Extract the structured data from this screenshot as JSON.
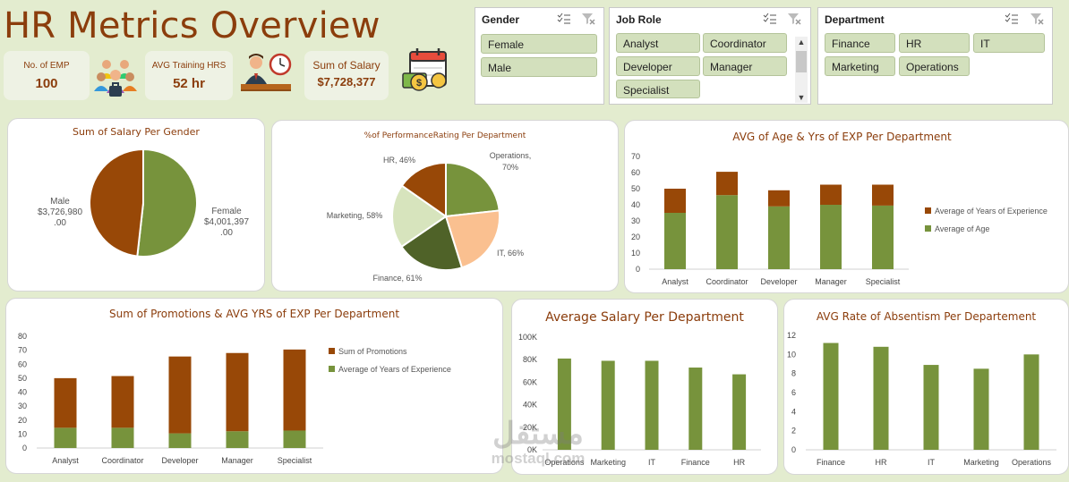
{
  "header": {
    "title": "HR Metrics Overview"
  },
  "kpis": {
    "emp_label": "No. of EMP",
    "emp_value": "100",
    "training_label": "AVG Training HRS",
    "training_value": "52 hr",
    "salary_label": "Sum of Salary",
    "salary_value": "$7,728,377"
  },
  "slicers": {
    "gender": {
      "title": "Gender",
      "items": [
        "Female",
        "Male"
      ]
    },
    "job_role": {
      "title": "Job Role",
      "items": [
        "Analyst",
        "Coordinator",
        "Developer",
        "Manager",
        "Specialist"
      ]
    },
    "department": {
      "title": "Department",
      "items": [
        "Finance",
        "HR",
        "IT",
        "Marketing",
        "Operations"
      ]
    }
  },
  "colors": {
    "brown": "#984807",
    "green": "#77933c",
    "light_green": "#d3e0bd",
    "title": "#8b3d0c"
  },
  "chart_data": [
    {
      "type": "pie",
      "title": "Sum of Salary Per Gender",
      "slices": [
        {
          "label": "Female",
          "value": 4001397,
          "display": "$4,001,397",
          "display2": ".00"
        },
        {
          "label": "Male",
          "value": 3726980,
          "display": "$3,726,980",
          "display2": ".00"
        }
      ]
    },
    {
      "type": "pie",
      "title": "%of PerformanceRating Per Department",
      "slices": [
        {
          "label": "Operations",
          "value": 70,
          "display": "Operations,",
          "display2": "70%",
          "color": "#77933c"
        },
        {
          "label": "IT",
          "value": 66,
          "display": "IT, 66%",
          "color": "#fac090"
        },
        {
          "label": "Finance",
          "value": 61,
          "display": "Finance, 61%",
          "color": "#4f6228"
        },
        {
          "label": "Marketing",
          "value": 58,
          "display": "Marketing, 58%",
          "color": "#d7e4bd"
        },
        {
          "label": "HR",
          "value": 46,
          "display": "HR, 46%",
          "color": "#984807"
        }
      ]
    },
    {
      "type": "bar",
      "stacked": true,
      "title": "AVG of Age & Yrs of EXP Per Department",
      "categories": [
        "Analyst",
        "Coordinator",
        "Developer",
        "Manager",
        "Specialist"
      ],
      "series": [
        {
          "name": "Average of Age",
          "values": [
            35,
            46,
            39,
            40,
            39.5
          ]
        },
        {
          "name": "Average of Years of Experience",
          "values": [
            15,
            14.5,
            10,
            12.5,
            13
          ]
        }
      ],
      "ylim": [
        0,
        70
      ],
      "yticks": [
        "0",
        "10",
        "20",
        "30",
        "40",
        "50",
        "60",
        "70"
      ],
      "legend": "right"
    },
    {
      "type": "bar",
      "stacked": true,
      "title": "Sum of Promotions & AVG YRS of EXP Per Department",
      "categories": [
        "Analyst",
        "Coordinator",
        "Developer",
        "Manager",
        "Specialist"
      ],
      "series": [
        {
          "name": "Average of Years of Experience",
          "values": [
            14.5,
            14.5,
            10.5,
            12,
            12.5
          ]
        },
        {
          "name": "Sum of Promotions",
          "values": [
            35.5,
            37,
            55,
            56,
            58
          ]
        }
      ],
      "ylim": [
        0,
        80
      ],
      "yticks": [
        "0",
        "10",
        "20",
        "30",
        "40",
        "50",
        "60",
        "70",
        "80"
      ],
      "legend": "right"
    },
    {
      "type": "bar",
      "title": "Average Salary Per Department",
      "categories": [
        "Operations",
        "Marketing",
        "IT",
        "Finance",
        "HR"
      ],
      "values": [
        81000,
        79000,
        79000,
        73000,
        67000
      ],
      "ylim": [
        0,
        100000
      ],
      "yticks": [
        "0K",
        "20K",
        "40K",
        "60K",
        "80K",
        "100K"
      ]
    },
    {
      "type": "bar",
      "title": "AVG Rate of Absentism Per Departement",
      "categories": [
        "Finance",
        "HR",
        "IT",
        "Marketing",
        "Operations"
      ],
      "values": [
        11.2,
        10.8,
        8.9,
        8.5,
        10
      ],
      "ylim": [
        0,
        12
      ],
      "yticks": [
        "0",
        "2",
        "4",
        "6",
        "8",
        "10",
        "12"
      ]
    }
  ],
  "watermark": {
    "arabic": "مستقل",
    "latin": "mostaql.com"
  }
}
